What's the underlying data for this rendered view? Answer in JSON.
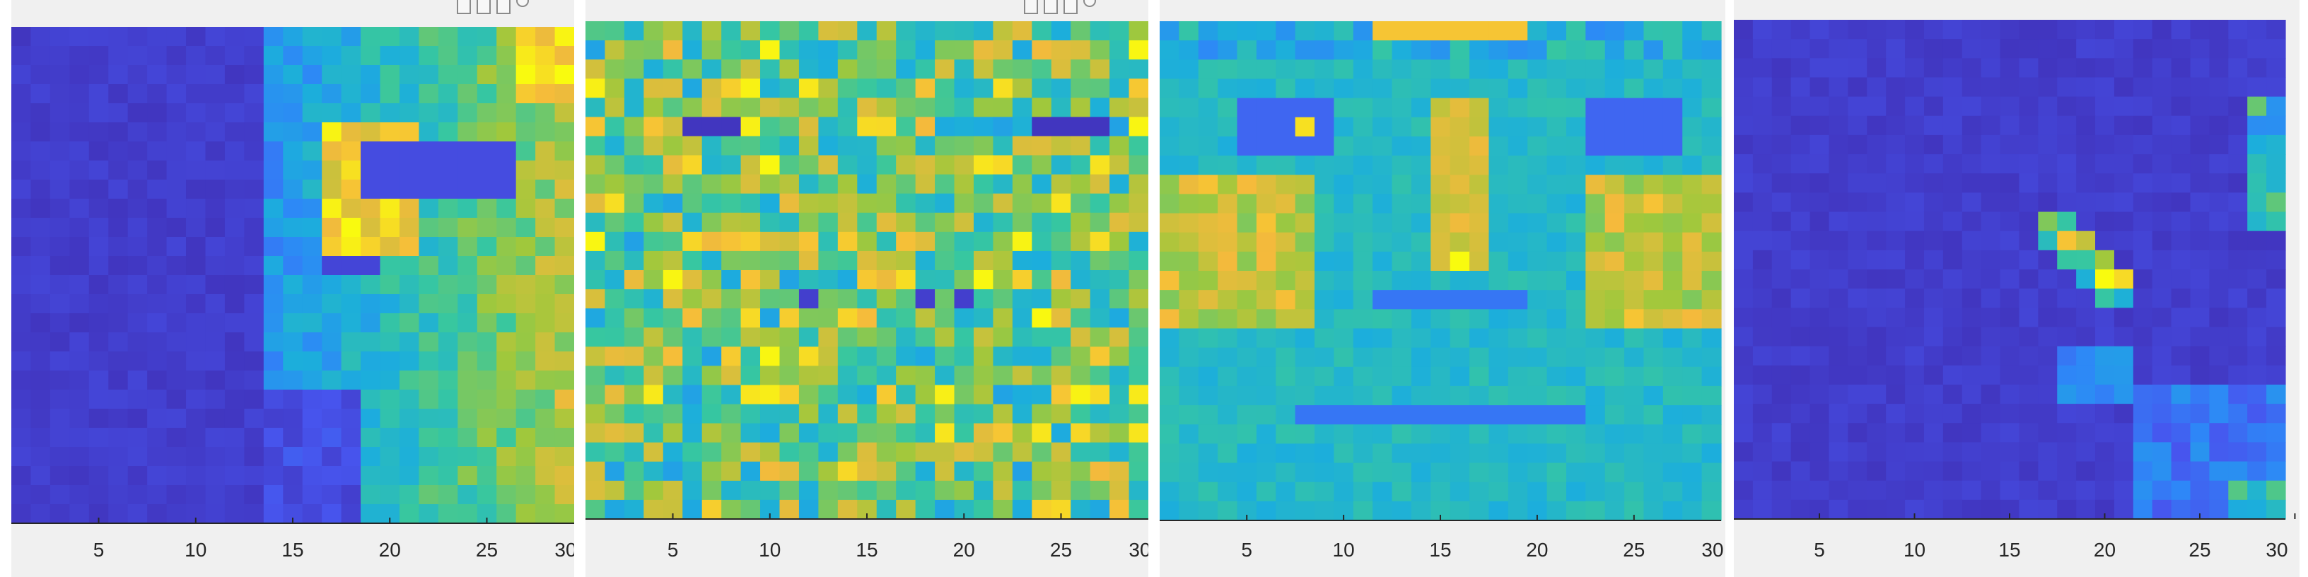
{
  "chart_data": [
    {
      "type": "heatmap",
      "title": "",
      "xlabel": "",
      "ylabel": "",
      "xticks": [
        "5",
        "10",
        "15",
        "20",
        "25",
        "30"
      ],
      "xlim": [
        0.5,
        29.5
      ],
      "colormap": "parula",
      "description_values": "grid of normalized intensities 0-1",
      "values": []
    },
    {
      "type": "heatmap",
      "title": "",
      "xlabel": "",
      "ylabel": "",
      "xticks": [
        "5",
        "10",
        "15",
        "20",
        "25",
        "30"
      ],
      "xlim": [
        0.5,
        29.5
      ],
      "colormap": "parula",
      "values": []
    },
    {
      "type": "heatmap",
      "title": "",
      "xlabel": "",
      "ylabel": "",
      "xticks": [
        "5",
        "10",
        "15",
        "20",
        "25",
        "30"
      ],
      "xlim": [
        0.5,
        29.5
      ],
      "colormap": "parula",
      "values": []
    },
    {
      "type": "heatmap",
      "title": "",
      "xlabel": "",
      "ylabel": "",
      "xticks": [
        "5",
        "10",
        "15",
        "20",
        "25",
        "30"
      ],
      "xlim": [
        0.5,
        29.5
      ],
      "colormap": "parula",
      "values": []
    }
  ],
  "toolbar": {
    "icons": [
      "save-icon",
      "insert-icon",
      "pan-icon",
      "zoom-icon"
    ]
  },
  "colors": {
    "low": "#3e26a8",
    "mid": "#1bb9c5",
    "high": "#f9fb0e"
  }
}
